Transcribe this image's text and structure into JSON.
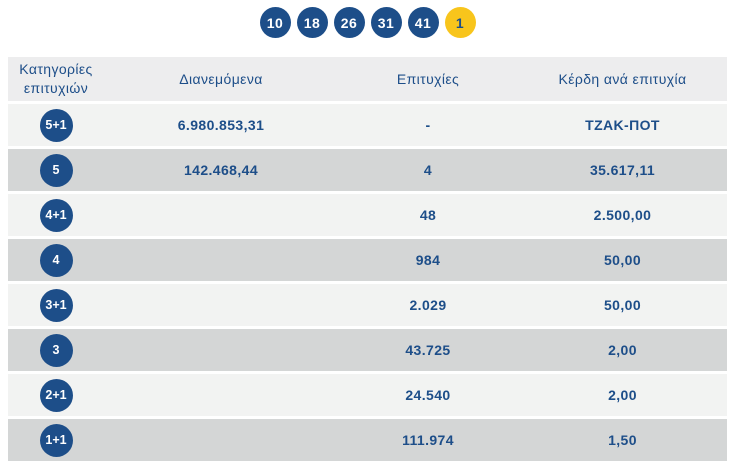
{
  "colors": {
    "navy": "#1d4e89",
    "bonus_yellow": "#f8c51c",
    "row_light": "#f2f3f2",
    "row_dark": "#d4d6d6",
    "header_bg": "#ededee",
    "header_text": "#9a9ea6"
  },
  "drawn_numbers": {
    "main": [
      "10",
      "18",
      "26",
      "31",
      "41"
    ],
    "bonus": "1"
  },
  "table": {
    "headers": {
      "category": "Κατηγορίες επιτυχιών",
      "distributed": "Διανεμόμενα",
      "winners": "Επιτυχίες",
      "prize": "Κέρδη ανά επιτυχία"
    },
    "rows": [
      {
        "category": "5+1",
        "distributed": "6.980.853,31",
        "winners": "-",
        "prize": "ΤΖΑΚ-ΠΟΤ"
      },
      {
        "category": "5",
        "distributed": "142.468,44",
        "winners": "4",
        "prize": "35.617,11"
      },
      {
        "category": "4+1",
        "distributed": "",
        "winners": "48",
        "prize": "2.500,00"
      },
      {
        "category": "4",
        "distributed": "",
        "winners": "984",
        "prize": "50,00"
      },
      {
        "category": "3+1",
        "distributed": "",
        "winners": "2.029",
        "prize": "50,00"
      },
      {
        "category": "3",
        "distributed": "",
        "winners": "43.725",
        "prize": "2,00"
      },
      {
        "category": "2+1",
        "distributed": "",
        "winners": "24.540",
        "prize": "2,00"
      },
      {
        "category": "1+1",
        "distributed": "",
        "winners": "111.974",
        "prize": "1,50"
      }
    ]
  }
}
